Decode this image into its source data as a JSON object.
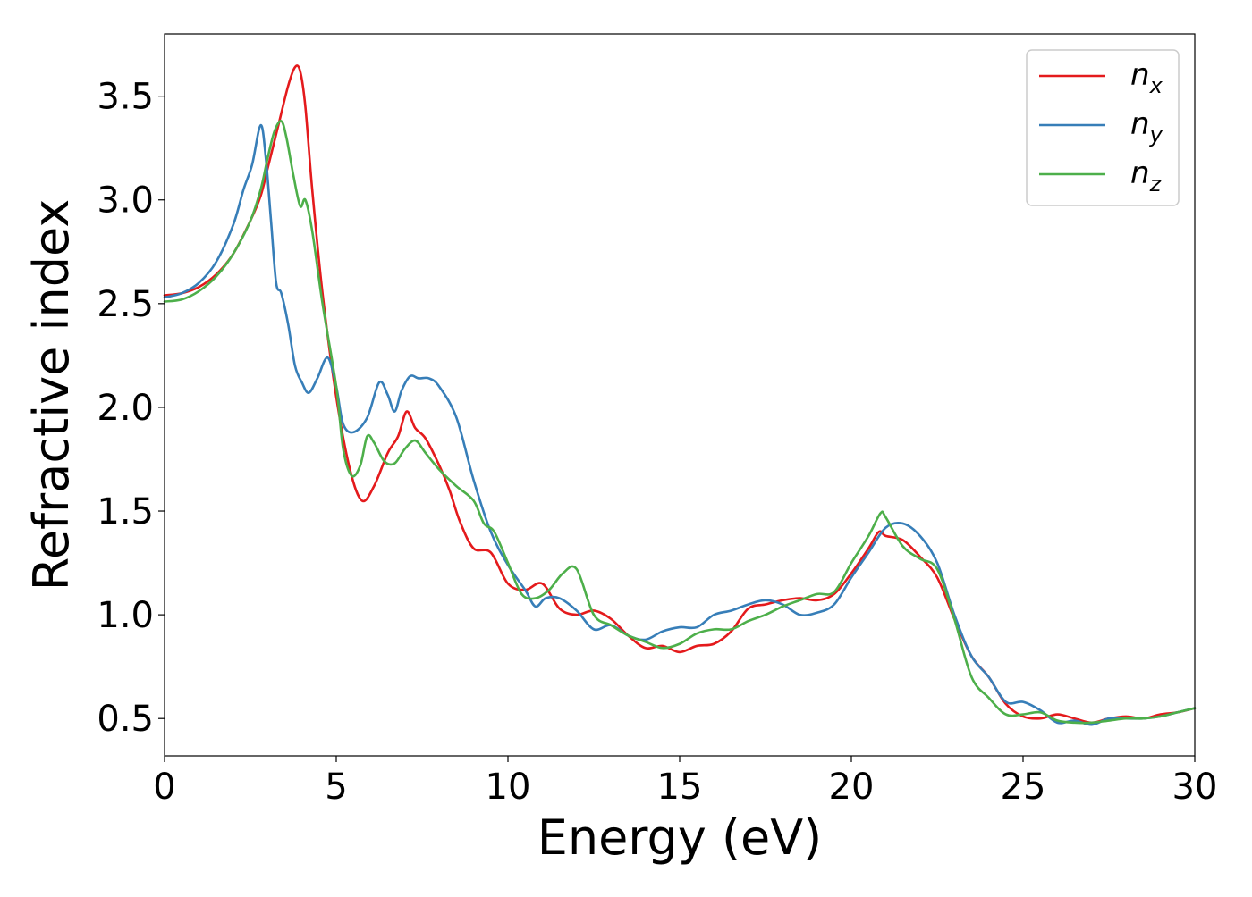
{
  "chart_data": {
    "type": "line",
    "title": "",
    "xlabel": "Energy (eV)",
    "ylabel": "Refractive index",
    "xlim": [
      0,
      30
    ],
    "ylim": [
      0.32,
      3.8
    ],
    "xticks": [
      0,
      5,
      10,
      15,
      20,
      25,
      30
    ],
    "xtick_labels": [
      "0",
      "5",
      "10",
      "15",
      "20",
      "25",
      "30"
    ],
    "yticks": [
      0.5,
      1.0,
      1.5,
      2.0,
      2.5,
      3.0,
      3.5
    ],
    "ytick_labels": [
      "0.5",
      "1.0",
      "1.5",
      "2.0",
      "2.5",
      "3.0",
      "3.5"
    ],
    "grid": false,
    "legend_position": "top-right",
    "series": [
      {
        "name": "n_x",
        "legend_base": "n",
        "legend_sub": "x",
        "color": "#e41a1c",
        "x": [
          0,
          0.5,
          1,
          1.5,
          2,
          2.5,
          2.8,
          3.0,
          3.3,
          3.6,
          3.8,
          3.95,
          4.1,
          4.3,
          4.6,
          5.0,
          5.4,
          5.75,
          6.1,
          6.5,
          6.8,
          7.05,
          7.3,
          7.6,
          8.0,
          8.3,
          8.6,
          9.0,
          9.5,
          10.0,
          10.5,
          11.0,
          11.5,
          12.0,
          12.5,
          13.0,
          13.5,
          14.0,
          14.5,
          15.0,
          15.5,
          16.0,
          16.5,
          17.0,
          17.5,
          18.0,
          18.5,
          19.0,
          19.5,
          20.0,
          20.5,
          20.8,
          21.0,
          21.5,
          22.0,
          22.5,
          23.0,
          23.5,
          24.0,
          24.5,
          25.0,
          25.5,
          26.0,
          26.5,
          27.0,
          27.5,
          28.0,
          28.5,
          29.0,
          29.5,
          30.0
        ],
        "y": [
          2.54,
          2.55,
          2.58,
          2.64,
          2.74,
          2.9,
          3.02,
          3.15,
          3.35,
          3.55,
          3.64,
          3.62,
          3.45,
          3.05,
          2.55,
          2.05,
          1.7,
          1.55,
          1.62,
          1.78,
          1.86,
          1.98,
          1.9,
          1.85,
          1.72,
          1.6,
          1.45,
          1.32,
          1.3,
          1.15,
          1.12,
          1.15,
          1.03,
          1.0,
          1.02,
          0.98,
          0.9,
          0.84,
          0.85,
          0.82,
          0.85,
          0.86,
          0.92,
          1.03,
          1.05,
          1.07,
          1.08,
          1.07,
          1.1,
          1.2,
          1.32,
          1.4,
          1.38,
          1.36,
          1.28,
          1.18,
          0.98,
          0.8,
          0.7,
          0.57,
          0.51,
          0.5,
          0.52,
          0.5,
          0.48,
          0.5,
          0.51,
          0.5,
          0.52,
          0.53,
          0.55
        ]
      },
      {
        "name": "n_y",
        "legend_base": "n",
        "legend_sub": "y",
        "color": "#377eb8",
        "x": [
          0,
          0.5,
          1,
          1.5,
          2,
          2.3,
          2.55,
          2.8,
          2.95,
          3.1,
          3.25,
          3.4,
          3.6,
          3.8,
          4.0,
          4.2,
          4.45,
          4.75,
          5.0,
          5.2,
          5.5,
          5.9,
          6.25,
          6.5,
          6.7,
          6.9,
          7.15,
          7.4,
          7.7,
          8.0,
          8.5,
          9.0,
          9.5,
          10.0,
          10.5,
          10.8,
          11.1,
          11.5,
          12.0,
          12.5,
          13.0,
          13.5,
          14.0,
          14.5,
          15.0,
          15.5,
          16.0,
          16.5,
          17.0,
          17.5,
          18.0,
          18.5,
          19.0,
          19.5,
          20.0,
          20.5,
          21.0,
          21.5,
          22.0,
          22.5,
          23.0,
          23.5,
          24.0,
          24.5,
          25.0,
          25.5,
          26.0,
          26.5,
          27.0,
          27.5,
          28.0,
          28.5,
          29.0,
          29.5,
          30.0
        ],
        "y": [
          2.53,
          2.55,
          2.6,
          2.7,
          2.88,
          3.05,
          3.17,
          3.36,
          3.2,
          2.9,
          2.6,
          2.55,
          2.4,
          2.2,
          2.12,
          2.07,
          2.14,
          2.24,
          2.1,
          1.92,
          1.88,
          1.95,
          2.12,
          2.06,
          1.98,
          2.08,
          2.15,
          2.14,
          2.14,
          2.1,
          1.95,
          1.65,
          1.4,
          1.24,
          1.12,
          1.04,
          1.08,
          1.08,
          1.02,
          0.93,
          0.95,
          0.9,
          0.88,
          0.92,
          0.94,
          0.94,
          1.0,
          1.02,
          1.05,
          1.07,
          1.05,
          1.0,
          1.01,
          1.05,
          1.18,
          1.3,
          1.42,
          1.44,
          1.38,
          1.25,
          1.0,
          0.8,
          0.7,
          0.58,
          0.58,
          0.54,
          0.48,
          0.49,
          0.47,
          0.5,
          0.5,
          0.5,
          0.51,
          0.53,
          0.55
        ]
      },
      {
        "name": "n_z",
        "legend_base": "n",
        "legend_sub": "z",
        "color": "#4daf4a",
        "x": [
          0,
          0.5,
          1,
          1.5,
          2,
          2.5,
          2.8,
          3.0,
          3.2,
          3.4,
          3.55,
          3.75,
          3.95,
          4.1,
          4.3,
          4.6,
          5.0,
          5.2,
          5.45,
          5.7,
          5.9,
          6.1,
          6.4,
          6.7,
          7.0,
          7.3,
          7.6,
          8.0,
          8.5,
          9.0,
          9.3,
          9.6,
          10.0,
          10.4,
          10.8,
          11.2,
          11.6,
          12.0,
          12.5,
          13.0,
          13.5,
          14.0,
          14.5,
          15.0,
          15.5,
          16.0,
          16.5,
          17.0,
          17.5,
          18.0,
          18.5,
          19.0,
          19.5,
          20.0,
          20.5,
          20.85,
          21.0,
          21.5,
          22.0,
          22.5,
          23.0,
          23.5,
          24.0,
          24.5,
          25.0,
          25.5,
          26.0,
          26.5,
          27.0,
          27.5,
          28.0,
          28.5,
          29.0,
          29.5,
          30.0
        ],
        "y": [
          2.51,
          2.52,
          2.56,
          2.63,
          2.74,
          2.9,
          3.05,
          3.2,
          3.33,
          3.38,
          3.3,
          3.12,
          2.97,
          3.0,
          2.85,
          2.5,
          2.1,
          1.8,
          1.67,
          1.72,
          1.86,
          1.83,
          1.74,
          1.73,
          1.8,
          1.84,
          1.78,
          1.7,
          1.62,
          1.55,
          1.44,
          1.4,
          1.25,
          1.1,
          1.08,
          1.12,
          1.2,
          1.22,
          1.0,
          0.95,
          0.9,
          0.87,
          0.84,
          0.86,
          0.91,
          0.93,
          0.93,
          0.97,
          1.0,
          1.04,
          1.07,
          1.1,
          1.11,
          1.25,
          1.38,
          1.49,
          1.47,
          1.33,
          1.27,
          1.22,
          0.98,
          0.7,
          0.6,
          0.52,
          0.52,
          0.53,
          0.49,
          0.48,
          0.48,
          0.49,
          0.5,
          0.5,
          0.51,
          0.53,
          0.55
        ]
      }
    ]
  }
}
